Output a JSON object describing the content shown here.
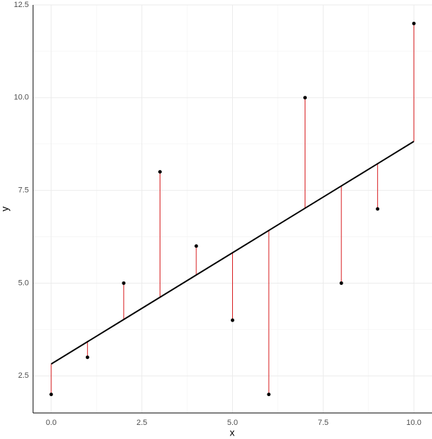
{
  "chart_data": {
    "type": "scatter",
    "x_label": "x",
    "y_label": "y",
    "x": [
      0,
      1,
      2,
      3,
      4,
      5,
      6,
      7,
      8,
      9,
      10
    ],
    "values": [
      2,
      3,
      5,
      8,
      6,
      4,
      2,
      10,
      5,
      7,
      12
    ],
    "fitted_values": [
      2.82,
      3.42,
      4.02,
      4.62,
      5.22,
      5.82,
      6.42,
      7.02,
      7.62,
      8.22,
      8.82
    ],
    "color": "#000000",
    "line_color": "#000000",
    "residual_color": "#d7191c",
    "xlim": [
      -0.5,
      10.5
    ],
    "ylim": [
      1.5,
      12.5
    ],
    "xticks": [
      {
        "value": 0,
        "label": "0.0"
      },
      2.5,
      {
        "value": 5,
        "label": "5.0"
      },
      7.5,
      {
        "value": 10,
        "label": "10.0"
      }
    ],
    "yticks": [
      2.5,
      {
        "value": 5,
        "label": "5.0"
      },
      7.5,
      {
        "value": 10,
        "label": "10.0"
      },
      12.5
    ],
    "grid": true
  }
}
